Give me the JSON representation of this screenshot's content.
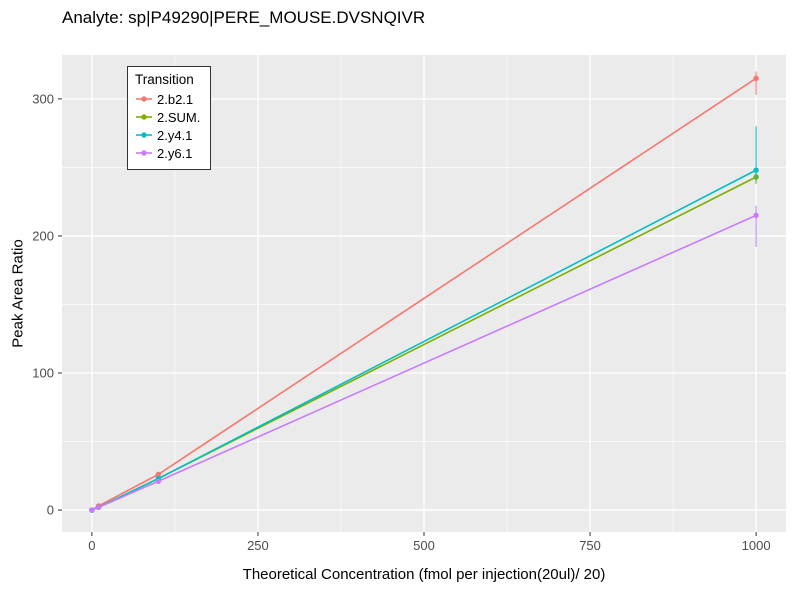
{
  "chart_data": {
    "type": "line",
    "title": "Analyte: sp|P49290|PERE_MOUSE.DVSNQIVR",
    "xlabel": "Theoretical Concentration (fmol per injection(20ul)/ 20)",
    "ylabel": "Peak Area Ratio",
    "legend_title": "Transition",
    "legend_position": "top-left-inside",
    "grid": true,
    "panel_color": "#EBEBEB",
    "grid_color": "#FFFFFF",
    "tick_label_color": "#4D4D4D",
    "xlim": [
      -45,
      1045
    ],
    "ylim": [
      -16,
      332
    ],
    "xticks": [
      0,
      250,
      500,
      750,
      1000
    ],
    "yticks": [
      0,
      100,
      200,
      300
    ],
    "xticks_minor": [
      125,
      375,
      625,
      875
    ],
    "yticks_minor": [
      50,
      150,
      250
    ],
    "series": [
      {
        "name": "2.b2.1",
        "color": "#F8766D",
        "x": [
          0,
          10,
          100,
          1000
        ],
        "y": [
          0,
          3,
          26,
          315
        ],
        "yerr_low": [
          0,
          3,
          24,
          303
        ],
        "yerr_high": [
          0,
          3,
          28,
          320
        ]
      },
      {
        "name": "2.SUM.",
        "color": "#7CAE00",
        "x": [
          0,
          10,
          100,
          1000
        ],
        "y": [
          0,
          2,
          23,
          243
        ],
        "yerr_low": [
          0,
          2,
          22,
          238
        ],
        "yerr_high": [
          0,
          2,
          24,
          250
        ]
      },
      {
        "name": "2.y4.1",
        "color": "#00BFC4",
        "x": [
          0,
          10,
          100,
          1000
        ],
        "y": [
          0,
          2,
          23,
          248
        ],
        "yerr_low": [
          0,
          2,
          22,
          240
        ],
        "yerr_high": [
          0,
          2,
          24,
          280
        ]
      },
      {
        "name": "2.y6.1",
        "color": "#C77CFF",
        "x": [
          0,
          10,
          100,
          1000
        ],
        "y": [
          0,
          2,
          21,
          215
        ],
        "yerr_low": [
          0,
          2,
          20,
          192
        ],
        "yerr_high": [
          0,
          2,
          22,
          222
        ]
      }
    ]
  }
}
